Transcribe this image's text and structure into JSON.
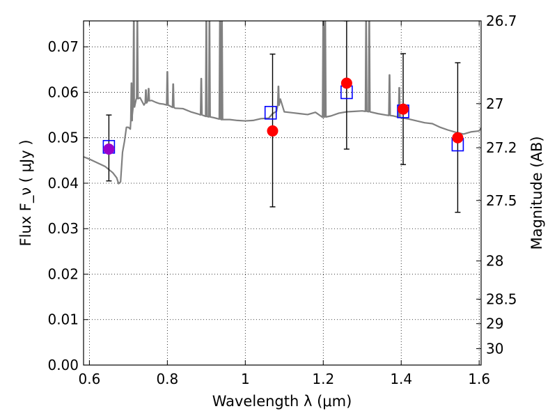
{
  "chart_data": {
    "type": "line",
    "title": "",
    "xlabel": "Wavelength  λ (μm)",
    "ylabel": "Flux  F_ν  ( μJy )",
    "y2label": "Magnitude (AB)",
    "xlim": [
      0.585,
      1.605
    ],
    "ylim": [
      0.0,
      0.0757
    ],
    "x_ticks": [
      0.6,
      0.8,
      1.0,
      1.2,
      1.4,
      1.6
    ],
    "x_tick_labels": [
      "0.6",
      "0.8",
      "1",
      "1.2",
      "1.4",
      "1.6"
    ],
    "y_ticks": [
      0.0,
      0.01,
      0.02,
      0.03,
      0.04,
      0.05,
      0.06,
      0.07
    ],
    "y_tick_labels": [
      "0.00",
      "0.01",
      "0.02",
      "0.03",
      "0.04",
      "0.05",
      "0.06",
      "0.07"
    ],
    "y2_ticks": [
      {
        "flux": 0.0757,
        "label": "26.7"
      },
      {
        "flux": 0.0575,
        "label": "27"
      },
      {
        "flux": 0.0478,
        "label": "27.2"
      },
      {
        "flux": 0.0362,
        "label": "27.5"
      },
      {
        "flux": 0.0229,
        "label": "28"
      },
      {
        "flux": 0.0145,
        "label": "28.5"
      },
      {
        "flux": 0.0091,
        "label": "29"
      },
      {
        "flux": 0.0036,
        "label": "30"
      }
    ],
    "grid": true,
    "colors": {
      "model": "#808080",
      "observed": "#ff0000",
      "model_phot": "#0000ff",
      "errorbar": "#000000",
      "overlap": "#9900cc"
    },
    "series": [
      {
        "kind": "line",
        "x": [
          0.585,
          0.6,
          0.62,
          0.64,
          0.66,
          0.67,
          0.675,
          0.68,
          0.685,
          0.69,
          0.695,
          0.7,
          0.705,
          0.71,
          0.715,
          0.72,
          0.73,
          0.74,
          0.75,
          0.76,
          0.77,
          0.78,
          0.79,
          0.8,
          0.82,
          0.84,
          0.86,
          0.88,
          0.9,
          0.92,
          0.94,
          0.96,
          0.98,
          1.0,
          1.02,
          1.04,
          1.06,
          1.07,
          1.08,
          1.09,
          1.1,
          1.12,
          1.14,
          1.16,
          1.18,
          1.2,
          1.22,
          1.24,
          1.26,
          1.28,
          1.3,
          1.32,
          1.34,
          1.36,
          1.38,
          1.4,
          1.42,
          1.44,
          1.46,
          1.48,
          1.5,
          1.52,
          1.54,
          1.56,
          1.58,
          1.6,
          1.605
        ],
        "values": [
          0.0458,
          0.0453,
          0.0445,
          0.0437,
          0.0423,
          0.0412,
          0.0399,
          0.0403,
          0.0468,
          0.0492,
          0.0523,
          0.0523,
          0.0519,
          0.055,
          0.0572,
          0.0585,
          0.0588,
          0.0572,
          0.0581,
          0.0582,
          0.0578,
          0.0575,
          0.0574,
          0.0572,
          0.0565,
          0.0564,
          0.0557,
          0.0552,
          0.0547,
          0.0544,
          0.054,
          0.054,
          0.0538,
          0.0537,
          0.0538,
          0.0542,
          0.0543,
          0.0553,
          0.0558,
          0.0585,
          0.0557,
          0.0555,
          0.0553,
          0.0551,
          0.0556,
          0.0545,
          0.0548,
          0.0554,
          0.0557,
          0.0558,
          0.0559,
          0.0557,
          0.0553,
          0.055,
          0.0548,
          0.0544,
          0.0541,
          0.0537,
          0.0533,
          0.0531,
          0.0523,
          0.0517,
          0.0512,
          0.0508,
          0.0513,
          0.0515,
          0.0522
        ],
        "spikes": [
          {
            "x": 0.708,
            "peak": 0.062
          },
          {
            "x": 0.714,
            "peak": 0.0757
          },
          {
            "x": 0.723,
            "peak": 0.0757
          },
          {
            "x": 0.745,
            "peak": 0.0605
          },
          {
            "x": 0.752,
            "peak": 0.0608
          },
          {
            "x": 0.8,
            "peak": 0.0645
          },
          {
            "x": 0.815,
            "peak": 0.0618
          },
          {
            "x": 0.887,
            "peak": 0.063
          },
          {
            "x": 0.9,
            "peak": 0.0757
          },
          {
            "x": 0.908,
            "peak": 0.0757
          },
          {
            "x": 0.935,
            "peak": 0.0757
          },
          {
            "x": 0.94,
            "peak": 0.0757
          },
          {
            "x": 1.085,
            "peak": 0.0613
          },
          {
            "x": 1.2,
            "peak": 0.0757
          },
          {
            "x": 1.205,
            "peak": 0.0757
          },
          {
            "x": 1.31,
            "peak": 0.0757
          },
          {
            "x": 1.318,
            "peak": 0.0757
          },
          {
            "x": 1.37,
            "peak": 0.0638
          },
          {
            "x": 1.395,
            "peak": 0.061
          }
        ]
      },
      {
        "kind": "squares",
        "x": [
          0.65,
          1.065,
          1.26,
          1.405,
          1.545
        ],
        "values": [
          0.048,
          0.0555,
          0.06,
          0.0558,
          0.0485
        ]
      },
      {
        "kind": "points",
        "x": [
          0.65,
          1.07,
          1.26,
          1.405,
          1.545
        ],
        "values": [
          0.0475,
          0.0515,
          0.062,
          0.0563,
          0.05
        ],
        "err_low": [
          0.0405,
          0.0348,
          0.0475,
          0.0441,
          0.0336
        ],
        "err_high": [
          0.055,
          0.0684,
          0.0757,
          0.0685,
          0.0665
        ]
      }
    ]
  }
}
